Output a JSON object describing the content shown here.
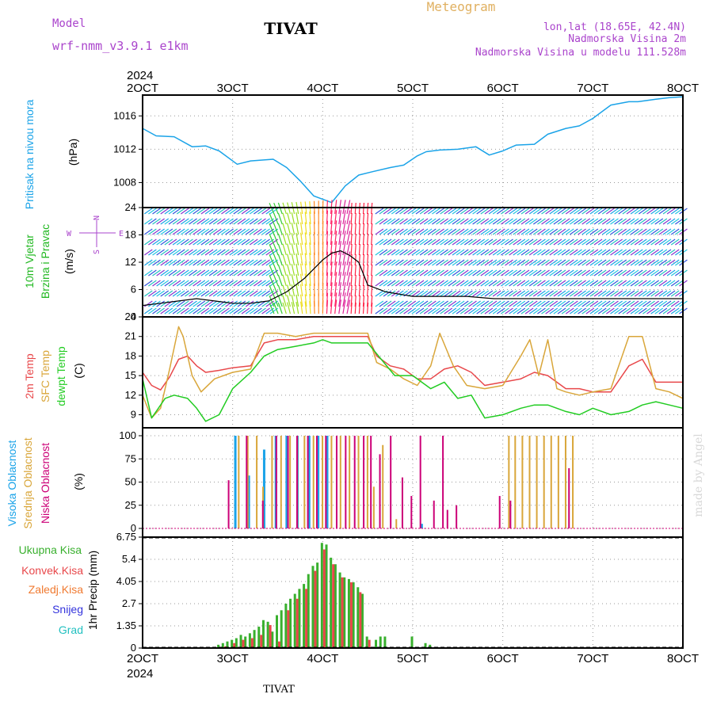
{
  "header": {
    "model_label": "Model",
    "model_name": "wrf-nmm_v3.9.1 e1km",
    "station": "TIVAT",
    "product": "Meteogram",
    "lonlat": "lon,lat (18.65E, 42.4N)",
    "elevation": "Nadmorska Visina 2m",
    "model_elevation": "Nadmorska Visina u modelu 111.528m",
    "footer_station": "TIVAT",
    "credit": "made by Angel"
  },
  "colors": {
    "pressure": "#1aa3e8",
    "wind_label": "#22b822",
    "temp_2m": "#e8474a",
    "temp_sfc": "#d9a63a",
    "dewpt": "#22cc22",
    "cloud_high": "#1aa3e8",
    "cloud_mid": "#d9a63a",
    "cloud_low": "#cc0077",
    "precip_total": "#39b02e",
    "precip_conv": "#e8474a",
    "precip_frozen": "#f07a30",
    "precip_snow": "#3333dd",
    "precip_grad": "#22c0c0",
    "purple_text": "#aa44cc",
    "orange_text": "#e0b060"
  },
  "x_axis": {
    "year": "2024",
    "ticks": [
      "2OCT",
      "3OCT",
      "4OCT",
      "5OCT",
      "6OCT",
      "7OCT",
      "8OCT"
    ]
  },
  "panels": {
    "pressure": {
      "label": "Pritisak na nivou mora",
      "unit": "(hPa)",
      "ticks": [
        "1008",
        "1012",
        "1016"
      ]
    },
    "wind": {
      "label_1": "10m Vjetar",
      "label_2": "Brzina i Pravac",
      "unit": "(m/s)",
      "ticks": [
        "0",
        "6",
        "12",
        "18",
        "24"
      ],
      "compass_n": "N",
      "compass_s": "S",
      "compass_w": "W",
      "compass_e": "E"
    },
    "temperature": {
      "label_2m": "2m Temp",
      "label_sfc": "SFC Temp",
      "label_dew": "dewpt Temp",
      "unit": "(C)",
      "ticks": [
        "9",
        "12",
        "15",
        "18",
        "21",
        "24"
      ]
    },
    "clouds": {
      "label_high": "Visoka Oblacnost",
      "label_mid": "Srednja Oblacnost",
      "label_low": "Niska Oblacnost",
      "unit": "(%)",
      "ticks": [
        "0",
        "25",
        "50",
        "75",
        "100"
      ]
    },
    "precip": {
      "label_total": "Ukupna Kisa",
      "label_conv": "Konvek.Kisa",
      "label_frozen": "Zaledj.Kisa",
      "label_snow": "Snijeg",
      "label_grad": "Grad",
      "unit": "1hr Precip (mm)",
      "ticks": [
        "0",
        "1.35",
        "2.7",
        "4.05",
        "5.4",
        "6.75"
      ]
    }
  },
  "chart_data": [
    {
      "type": "line",
      "title": "Pritisak na nivou mora",
      "ylabel": "(hPa)",
      "ylim": [
        1005,
        1018.5
      ],
      "x_unit": "days since 2 Oct 2024 00 UTC",
      "xlim": [
        0,
        6
      ],
      "grid": true,
      "series": [
        {
          "name": "Pritisak na nivou mora",
          "x": [
            0,
            0.15,
            0.35,
            0.55,
            0.7,
            0.85,
            1.05,
            1.2,
            1.45,
            1.6,
            1.75,
            1.9,
            2.1,
            2.25,
            2.4,
            2.55,
            2.75,
            2.9,
            3.05,
            3.15,
            3.3,
            3.5,
            3.7,
            3.85,
            4.0,
            4.15,
            4.35,
            4.5,
            4.7,
            4.85,
            5.0,
            5.2,
            5.4,
            5.5,
            5.7,
            5.85,
            6.0
          ],
          "y": [
            1014.5,
            1013.6,
            1013.5,
            1012.3,
            1012.4,
            1011.8,
            1010.2,
            1010.6,
            1010.8,
            1009.8,
            1008.2,
            1006.4,
            1005.6,
            1007.6,
            1008.9,
            1009.3,
            1009.8,
            1010.1,
            1011.2,
            1011.7,
            1011.9,
            1012.0,
            1012.3,
            1011.3,
            1011.8,
            1012.5,
            1012.6,
            1013.8,
            1014.5,
            1014.8,
            1015.7,
            1017.3,
            1017.7,
            1017.7,
            1018.0,
            1018.2,
            1018.3
          ]
        }
      ]
    },
    {
      "type": "line",
      "title": "10m Vjetar Brzina i Pravac",
      "ylabel": "(m/s)",
      "ylim": [
        0,
        24
      ],
      "xlim": [
        0,
        6
      ],
      "grid": true,
      "series": [
        {
          "name": "Brzina",
          "x": [
            0,
            0.2,
            0.4,
            0.6,
            0.8,
            1.0,
            1.2,
            1.4,
            1.6,
            1.8,
            2.0,
            2.1,
            2.2,
            2.3,
            2.4,
            2.5,
            2.7,
            3.0,
            3.3,
            3.6,
            3.9,
            4.2,
            4.5,
            4.8,
            5.1,
            5.4,
            5.7,
            6.0
          ],
          "y": [
            2.5,
            3.0,
            3.5,
            4.0,
            3.5,
            3.0,
            3.0,
            3.5,
            5.5,
            8.5,
            12.5,
            14.0,
            14.5,
            13.5,
            12.0,
            7.0,
            5.5,
            4.5,
            4.5,
            4.5,
            4.0,
            4.0,
            4.0,
            4.0,
            4.0,
            4.0,
            4.0,
            4.0
          ]
        }
      ],
      "wind_direction_sectors": [
        {
          "from": 0.0,
          "to": 1.45,
          "dir": "NE"
        },
        {
          "from": 1.45,
          "to": 2.3,
          "dir": "S-SW"
        },
        {
          "from": 2.3,
          "to": 2.55,
          "dir": "S"
        },
        {
          "from": 2.55,
          "to": 6.0,
          "dir": "NE"
        }
      ]
    },
    {
      "type": "line",
      "title": "2m Temp, SFC Temp, dewpt Temp",
      "ylabel": "(C)",
      "ylim": [
        7,
        24
      ],
      "xlim": [
        0,
        6
      ],
      "grid": true,
      "series": [
        {
          "name": "2m Temp",
          "x": [
            0,
            0.1,
            0.2,
            0.3,
            0.4,
            0.5,
            0.6,
            0.7,
            0.85,
            1.0,
            1.2,
            1.35,
            1.5,
            1.7,
            1.9,
            2.1,
            2.3,
            2.5,
            2.6,
            2.75,
            2.9,
            3.05,
            3.2,
            3.35,
            3.5,
            3.65,
            3.8,
            4.0,
            4.2,
            4.35,
            4.5,
            4.7,
            4.85,
            5.0,
            5.2,
            5.4,
            5.55,
            5.7,
            5.85,
            6.0
          ],
          "y": [
            15.5,
            13.5,
            12.8,
            14.8,
            17.5,
            18.0,
            16.5,
            15.5,
            15.8,
            16.2,
            16.5,
            20.0,
            20.5,
            20.5,
            21.0,
            21.0,
            21.0,
            21.0,
            18.0,
            16.5,
            16.0,
            14.5,
            14.5,
            16.0,
            16.5,
            15.5,
            13.5,
            14.0,
            14.5,
            15.5,
            15.0,
            13.0,
            13.0,
            12.5,
            12.5,
            16.5,
            17.5,
            14.0,
            14.0,
            14.0
          ]
        },
        {
          "name": "SFC Temp",
          "x": [
            0,
            0.1,
            0.2,
            0.3,
            0.4,
            0.45,
            0.55,
            0.65,
            0.8,
            1.0,
            1.2,
            1.35,
            1.5,
            1.7,
            1.9,
            2.1,
            2.3,
            2.5,
            2.6,
            2.75,
            2.9,
            3.05,
            3.2,
            3.3,
            3.45,
            3.6,
            3.8,
            4.0,
            4.2,
            4.3,
            4.4,
            4.5,
            4.6,
            4.7,
            4.85,
            5.0,
            5.2,
            5.4,
            5.55,
            5.7,
            5.85,
            6.0
          ],
          "y": [
            12.0,
            8.5,
            10.0,
            16.0,
            22.5,
            21.0,
            15.0,
            12.5,
            14.5,
            15.5,
            16.0,
            21.5,
            21.5,
            21.0,
            21.5,
            21.5,
            21.5,
            21.5,
            17.0,
            16.0,
            14.5,
            13.5,
            16.5,
            21.5,
            16.5,
            13.5,
            13.0,
            13.5,
            18.0,
            20.5,
            15.0,
            20.5,
            13.0,
            12.5,
            12.0,
            12.5,
            13.0,
            21.0,
            21.0,
            13.0,
            12.5,
            11.5
          ]
        },
        {
          "name": "dewpt Temp",
          "x": [
            0,
            0.1,
            0.15,
            0.25,
            0.35,
            0.5,
            0.6,
            0.7,
            0.85,
            1.0,
            1.2,
            1.35,
            1.5,
            1.7,
            1.9,
            2.0,
            2.1,
            2.3,
            2.5,
            2.65,
            2.8,
            3.0,
            3.2,
            3.35,
            3.5,
            3.65,
            3.8,
            4.0,
            4.2,
            4.35,
            4.5,
            4.7,
            4.85,
            5.0,
            5.2,
            5.4,
            5.55,
            5.7,
            5.85,
            6.0
          ],
          "y": [
            14.5,
            8.5,
            9.5,
            11.5,
            12.0,
            11.5,
            10.0,
            8.0,
            9.0,
            13.0,
            15.5,
            18.0,
            19.0,
            19.5,
            20.0,
            20.5,
            20.0,
            20.0,
            20.0,
            17.5,
            15.0,
            15.0,
            13.0,
            14.0,
            11.5,
            12.0,
            8.5,
            9.0,
            10.0,
            10.5,
            10.5,
            9.5,
            9.0,
            10.0,
            9.0,
            9.5,
            10.5,
            11.0,
            10.5,
            10.0
          ]
        }
      ]
    },
    {
      "type": "bar",
      "title": "Visoka Oblacnost, Srednja Oblacnost, Niska Oblacnost",
      "ylabel": "(%)",
      "ylim": [
        0,
        100
      ],
      "xlim": [
        0,
        6
      ],
      "grid": true,
      "series": [
        {
          "name": "Visoka Oblacnost",
          "x": [
            1.03,
            1.18,
            1.35,
            1.48,
            1.6,
            1.72,
            1.85,
            1.95,
            2.05,
            3.1
          ],
          "values": [
            100,
            57,
            85,
            100,
            100,
            100,
            100,
            100,
            100,
            5
          ]
        },
        {
          "name": "Srednja Oblacnost",
          "x": [
            1.05,
            1.15,
            1.25,
            1.32,
            1.42,
            1.52,
            1.62,
            1.7,
            1.78,
            1.88,
            1.98,
            2.08,
            2.18,
            2.28,
            2.38,
            2.48,
            2.55,
            2.65,
            2.8,
            4.05,
            4.12,
            4.2,
            4.28,
            4.36,
            4.44,
            4.52,
            4.6,
            4.68,
            4.76
          ],
          "values": [
            100,
            100,
            100,
            45,
            100,
            100,
            100,
            100,
            100,
            100,
            100,
            100,
            100,
            100,
            100,
            100,
            45,
            90,
            10,
            100,
            100,
            100,
            100,
            100,
            100,
            100,
            100,
            100,
            100
          ]
        },
        {
          "name": "Niska Oblacnost",
          "x": [
            0.92,
            1.12,
            1.3,
            1.45,
            1.58,
            1.68,
            1.8,
            1.9,
            2.0,
            2.12,
            2.22,
            2.32,
            2.42,
            2.5,
            2.6,
            2.72,
            2.85,
            2.95,
            3.05,
            3.2,
            3.3,
            3.35,
            3.45,
            3.93,
            4.05,
            4.7
          ],
          "values": [
            52,
            100,
            30,
            100,
            100,
            100,
            100,
            100,
            100,
            100,
            100,
            100,
            100,
            100,
            80,
            100,
            55,
            35,
            100,
            30,
            100,
            20,
            25,
            35,
            30,
            65
          ]
        }
      ]
    },
    {
      "type": "bar",
      "title": "Ukupna Kisa, Konvek.Kisa",
      "ylabel": "1hr Precip (mm)",
      "ylim": [
        0,
        6.75
      ],
      "xlim": [
        0,
        6
      ],
      "grid": true,
      "series": [
        {
          "name": "Ukupna Kisa",
          "x": [
            0.85,
            0.9,
            0.95,
            1.0,
            1.05,
            1.1,
            1.15,
            1.2,
            1.25,
            1.3,
            1.35,
            1.4,
            1.45,
            1.5,
            1.55,
            1.6,
            1.65,
            1.7,
            1.75,
            1.8,
            1.85,
            1.9,
            1.95,
            2.0,
            2.05,
            2.1,
            2.15,
            2.2,
            2.25,
            2.3,
            2.35,
            2.4,
            2.45,
            2.5,
            2.6,
            2.65,
            2.7,
            3.0,
            3.15,
            3.2
          ],
          "values": [
            0.2,
            0.3,
            0.4,
            0.5,
            0.6,
            0.8,
            0.7,
            0.9,
            1.1,
            1.3,
            1.7,
            1.6,
            1.0,
            2.0,
            2.3,
            2.7,
            3.0,
            3.3,
            3.6,
            3.9,
            4.5,
            5.0,
            5.2,
            6.4,
            6.3,
            5.5,
            5.1,
            4.6,
            4.3,
            4.2,
            4.0,
            3.7,
            3.3,
            0.7,
            0.5,
            0.7,
            0.7,
            0.7,
            0.3,
            0.2
          ]
        },
        {
          "name": "Konvek.Kisa",
          "x": [
            0.9,
            1.0,
            1.1,
            1.2,
            1.3,
            1.4,
            1.5,
            1.6,
            1.7,
            1.8,
            1.9,
            2.0,
            2.1,
            2.2,
            2.3,
            2.4,
            2.5
          ],
          "values": [
            0.1,
            0.3,
            0.5,
            0.6,
            0.8,
            1.4,
            0.4,
            2.3,
            3.0,
            3.6,
            4.7,
            6.0,
            5.1,
            4.3,
            4.0,
            3.4,
            0.5
          ]
        }
      ]
    }
  ]
}
